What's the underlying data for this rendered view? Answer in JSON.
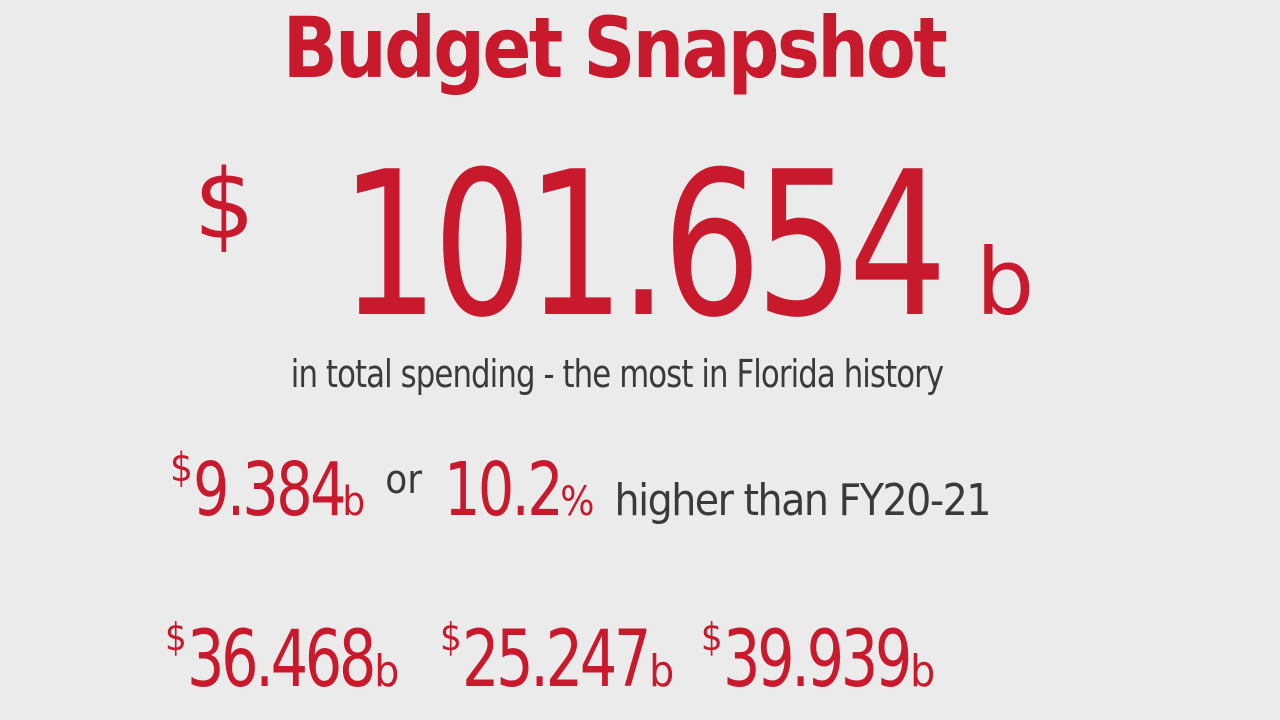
{
  "title": "Budget Snapshot",
  "total": {
    "currency": "$",
    "amount": "101.654",
    "unit": "b",
    "caption": "in total spending - the most in Florida history"
  },
  "growth": {
    "currency": "$",
    "amount": "9.384",
    "unit": "b",
    "connector": "or",
    "percent": "10.2",
    "percent_sign": "%",
    "comparison": "higher than FY20-21"
  },
  "breakdown": [
    {
      "currency": "$",
      "amount": "36.468",
      "unit": "b"
    },
    {
      "currency": "$",
      "amount": "25.247",
      "unit": "b"
    },
    {
      "currency": "$",
      "amount": "39.939",
      "unit": "b"
    }
  ],
  "colors": {
    "accent": "#c8192d",
    "text": "#3a3a3a",
    "background": "#ebebeb"
  }
}
